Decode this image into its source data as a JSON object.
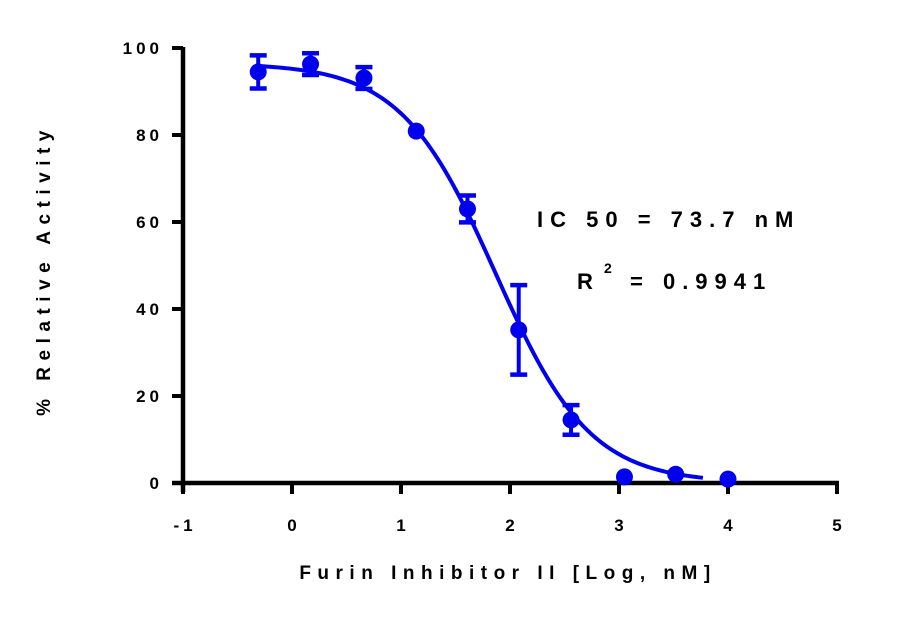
{
  "chart_data": {
    "type": "scatter",
    "title": "",
    "xlabel": "Furin Inhibitor II [Log, nM]",
    "ylabel": "% Relative Activity",
    "xlim": [
      -1,
      5
    ],
    "ylim": [
      0,
      100
    ],
    "x_ticks": [
      -1,
      0,
      1,
      2,
      3,
      4,
      5
    ],
    "y_ticks": [
      0,
      20,
      40,
      60,
      80,
      100
    ],
    "grid": false,
    "legend": null,
    "series": [
      {
        "name": "Furin Inhibitor II",
        "color": "#0000ee",
        "marker": "circle",
        "x": [
          -0.31,
          0.17,
          0.66,
          1.14,
          1.61,
          2.08,
          2.56,
          3.05,
          3.52,
          4.0
        ],
        "y": [
          94.5,
          96.3,
          93.1,
          80.9,
          63.0,
          35.2,
          14.5,
          1.4,
          2.0,
          0.9
        ],
        "error": [
          3.8,
          2.5,
          2.5,
          0,
          3.1,
          10.3,
          3.4,
          0,
          0,
          0
        ]
      }
    ],
    "fit": {
      "model": "4-parameter logistic",
      "top": 96.5,
      "bottom": 0,
      "log_ic50": 1.867,
      "hill_slope": -1.0,
      "x_range": [
        -0.31,
        3.77
      ],
      "color": "#0000ee"
    },
    "annotations": [
      {
        "text": "IC 50  =  73.7  nM"
      },
      {
        "text": "R",
        "superscript": "2",
        "rest": "=  0.9941"
      }
    ]
  },
  "labels": {
    "ylabel": "% Relative Activity",
    "xlabel": "Furin Inhibitor II [Log, nM]",
    "ic50": "IC 50  =  73.7  nM",
    "r2_base": "R",
    "r2_sup": "2",
    "r2_value": "=  0.9941",
    "x_tick_labels": [
      "-1",
      "0",
      "1",
      "2",
      "3",
      "4",
      "5"
    ],
    "y_tick_labels": [
      "0",
      "20",
      "40",
      "60",
      "80",
      "100"
    ]
  }
}
